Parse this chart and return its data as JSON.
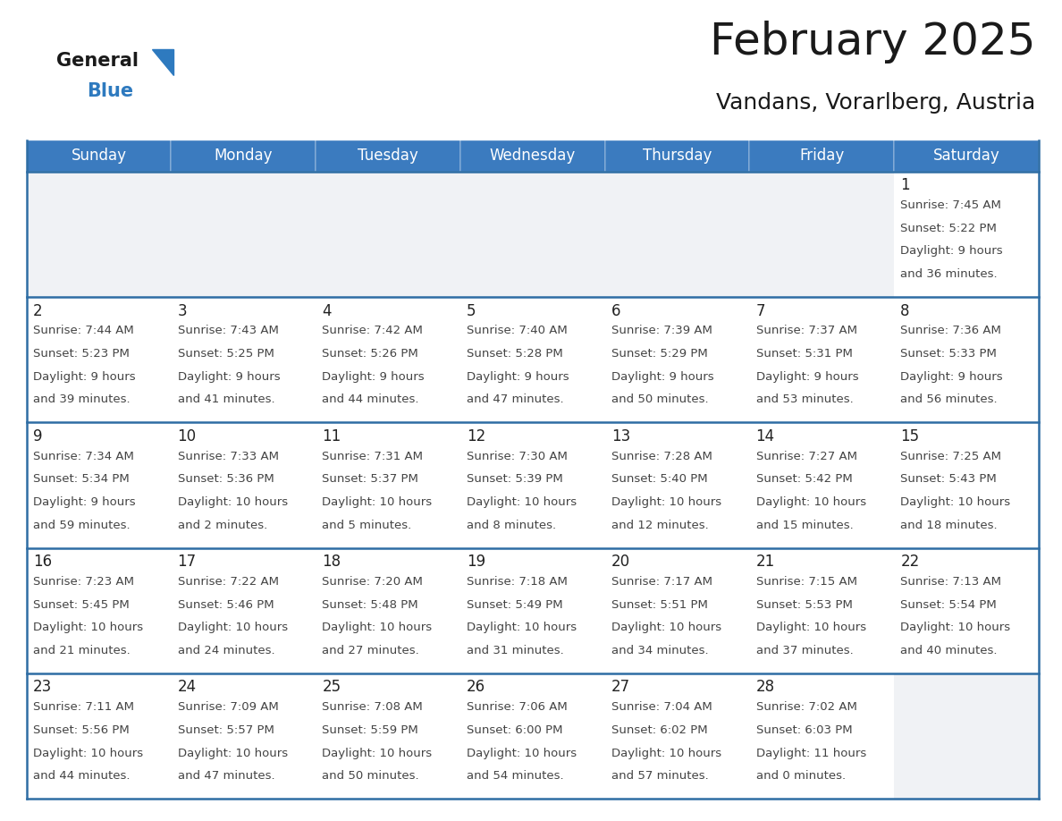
{
  "title": "February 2025",
  "subtitle": "Vandans, Vorarlberg, Austria",
  "days_of_week": [
    "Sunday",
    "Monday",
    "Tuesday",
    "Wednesday",
    "Thursday",
    "Friday",
    "Saturday"
  ],
  "header_bg": "#3b7bbf",
  "header_text": "#ffffff",
  "cell_bg_white": "#ffffff",
  "cell_bg_light": "#f0f2f5",
  "border_color": "#2e6da4",
  "separator_color": "#2e6da4",
  "text_color": "#444444",
  "day_number_color": "#222222",
  "calendar_data": [
    [
      null,
      null,
      null,
      null,
      null,
      null,
      {
        "day": 1,
        "sunrise": "7:45 AM",
        "sunset": "5:22 PM",
        "daylight": "9 hours\nand 36 minutes."
      }
    ],
    [
      {
        "day": 2,
        "sunrise": "7:44 AM",
        "sunset": "5:23 PM",
        "daylight": "9 hours\nand 39 minutes."
      },
      {
        "day": 3,
        "sunrise": "7:43 AM",
        "sunset": "5:25 PM",
        "daylight": "9 hours\nand 41 minutes."
      },
      {
        "day": 4,
        "sunrise": "7:42 AM",
        "sunset": "5:26 PM",
        "daylight": "9 hours\nand 44 minutes."
      },
      {
        "day": 5,
        "sunrise": "7:40 AM",
        "sunset": "5:28 PM",
        "daylight": "9 hours\nand 47 minutes."
      },
      {
        "day": 6,
        "sunrise": "7:39 AM",
        "sunset": "5:29 PM",
        "daylight": "9 hours\nand 50 minutes."
      },
      {
        "day": 7,
        "sunrise": "7:37 AM",
        "sunset": "5:31 PM",
        "daylight": "9 hours\nand 53 minutes."
      },
      {
        "day": 8,
        "sunrise": "7:36 AM",
        "sunset": "5:33 PM",
        "daylight": "9 hours\nand 56 minutes."
      }
    ],
    [
      {
        "day": 9,
        "sunrise": "7:34 AM",
        "sunset": "5:34 PM",
        "daylight": "9 hours\nand 59 minutes."
      },
      {
        "day": 10,
        "sunrise": "7:33 AM",
        "sunset": "5:36 PM",
        "daylight": "10 hours\nand 2 minutes."
      },
      {
        "day": 11,
        "sunrise": "7:31 AM",
        "sunset": "5:37 PM",
        "daylight": "10 hours\nand 5 minutes."
      },
      {
        "day": 12,
        "sunrise": "7:30 AM",
        "sunset": "5:39 PM",
        "daylight": "10 hours\nand 8 minutes."
      },
      {
        "day": 13,
        "sunrise": "7:28 AM",
        "sunset": "5:40 PM",
        "daylight": "10 hours\nand 12 minutes."
      },
      {
        "day": 14,
        "sunrise": "7:27 AM",
        "sunset": "5:42 PM",
        "daylight": "10 hours\nand 15 minutes."
      },
      {
        "day": 15,
        "sunrise": "7:25 AM",
        "sunset": "5:43 PM",
        "daylight": "10 hours\nand 18 minutes."
      }
    ],
    [
      {
        "day": 16,
        "sunrise": "7:23 AM",
        "sunset": "5:45 PM",
        "daylight": "10 hours\nand 21 minutes."
      },
      {
        "day": 17,
        "sunrise": "7:22 AM",
        "sunset": "5:46 PM",
        "daylight": "10 hours\nand 24 minutes."
      },
      {
        "day": 18,
        "sunrise": "7:20 AM",
        "sunset": "5:48 PM",
        "daylight": "10 hours\nand 27 minutes."
      },
      {
        "day": 19,
        "sunrise": "7:18 AM",
        "sunset": "5:49 PM",
        "daylight": "10 hours\nand 31 minutes."
      },
      {
        "day": 20,
        "sunrise": "7:17 AM",
        "sunset": "5:51 PM",
        "daylight": "10 hours\nand 34 minutes."
      },
      {
        "day": 21,
        "sunrise": "7:15 AM",
        "sunset": "5:53 PM",
        "daylight": "10 hours\nand 37 minutes."
      },
      {
        "day": 22,
        "sunrise": "7:13 AM",
        "sunset": "5:54 PM",
        "daylight": "10 hours\nand 40 minutes."
      }
    ],
    [
      {
        "day": 23,
        "sunrise": "7:11 AM",
        "sunset": "5:56 PM",
        "daylight": "10 hours\nand 44 minutes."
      },
      {
        "day": 24,
        "sunrise": "7:09 AM",
        "sunset": "5:57 PM",
        "daylight": "10 hours\nand 47 minutes."
      },
      {
        "day": 25,
        "sunrise": "7:08 AM",
        "sunset": "5:59 PM",
        "daylight": "10 hours\nand 50 minutes."
      },
      {
        "day": 26,
        "sunrise": "7:06 AM",
        "sunset": "6:00 PM",
        "daylight": "10 hours\nand 54 minutes."
      },
      {
        "day": 27,
        "sunrise": "7:04 AM",
        "sunset": "6:02 PM",
        "daylight": "10 hours\nand 57 minutes."
      },
      {
        "day": 28,
        "sunrise": "7:02 AM",
        "sunset": "6:03 PM",
        "daylight": "11 hours\nand 0 minutes."
      },
      null
    ]
  ],
  "logo_text_general": "General",
  "logo_text_blue": "Blue",
  "title_fontsize": 36,
  "subtitle_fontsize": 18,
  "header_fontsize": 12,
  "day_num_fontsize": 12,
  "cell_text_fontsize": 9.5
}
